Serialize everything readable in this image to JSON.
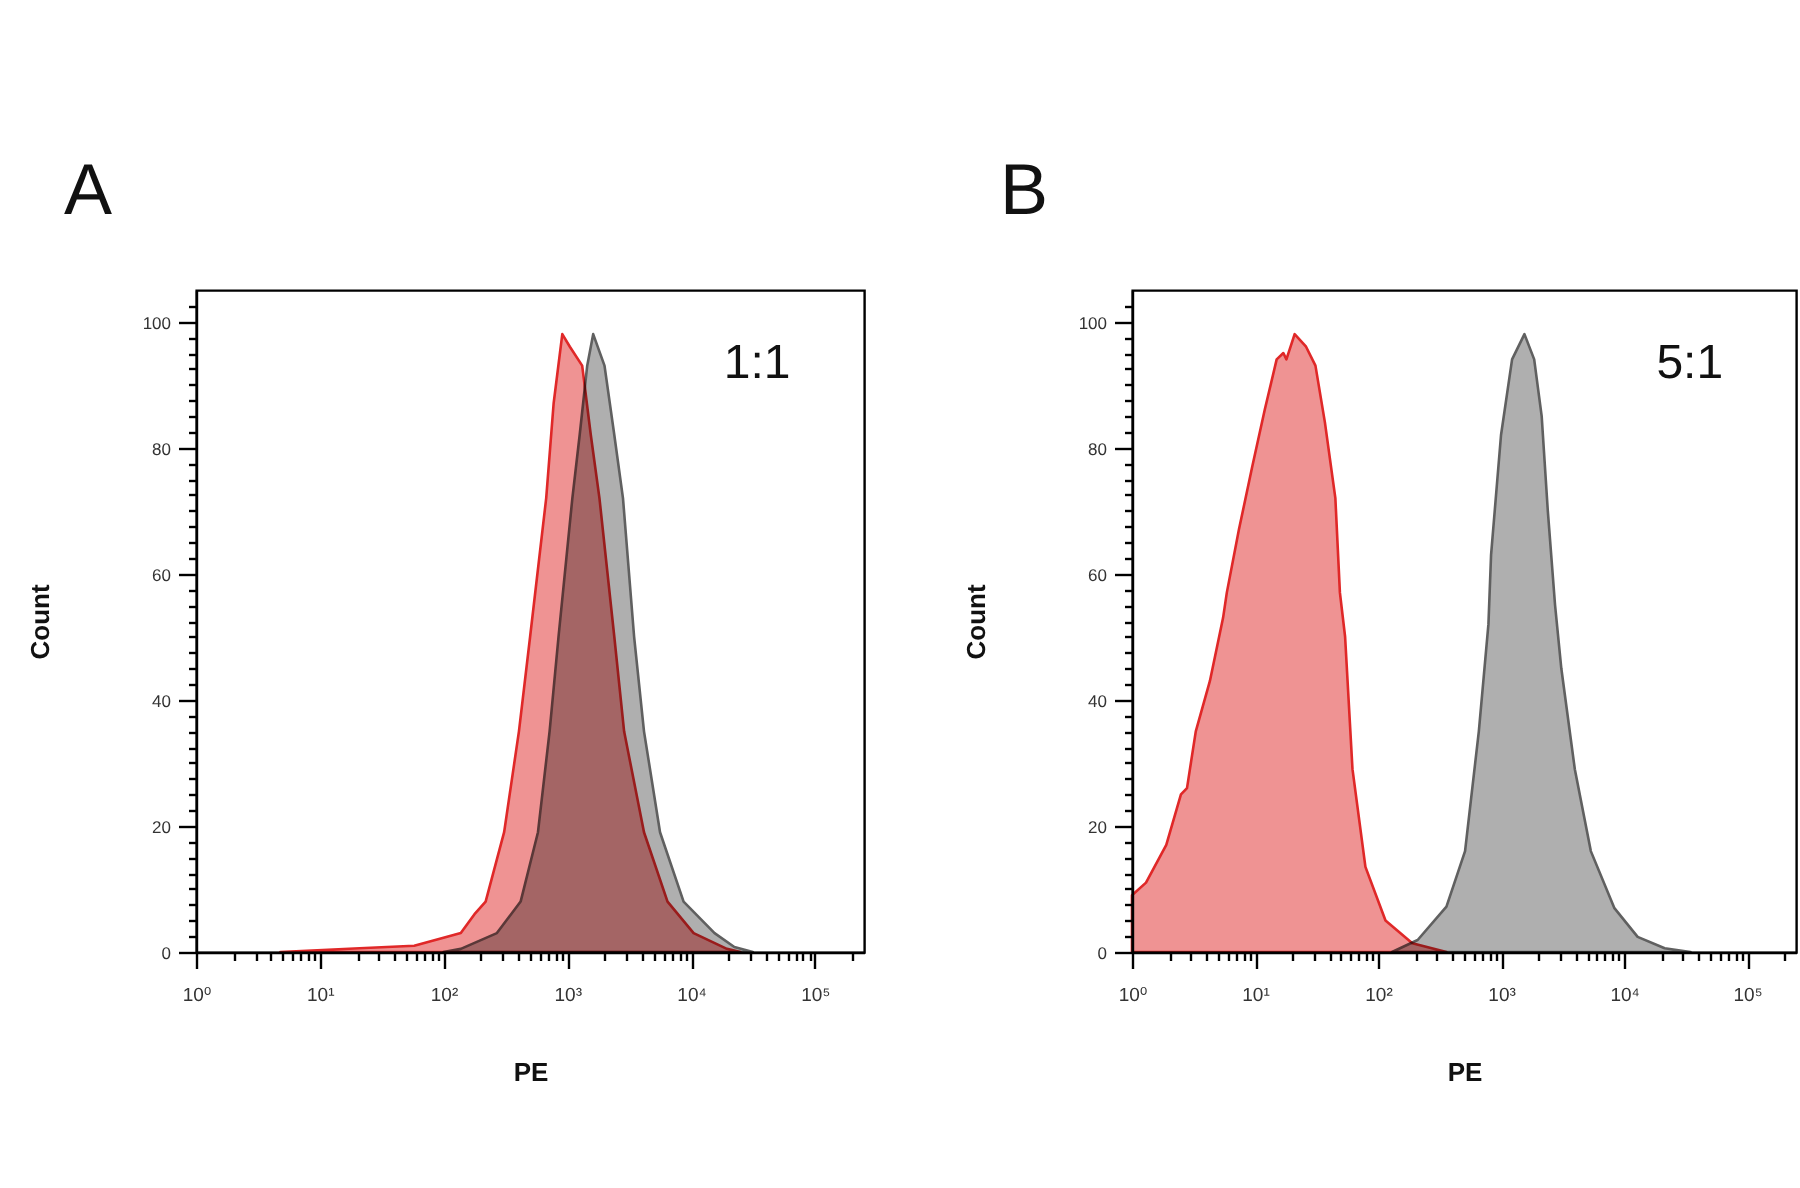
{
  "chart_data": [
    {
      "type": "area",
      "title": "A",
      "xlabel": "PE",
      "ylabel": "Count",
      "annotations": [
        "1:1"
      ],
      "log": "x",
      "xlim": [
        1,
        250000
      ],
      "ylim": [
        0,
        105
      ],
      "xticks": [
        {
          "value": 1,
          "label": "10⁰"
        },
        {
          "value": 2,
          "label": null
        },
        {
          "value": 3,
          "label": null
        },
        {
          "value": 4,
          "label": null
        },
        {
          "value": 5,
          "label": null
        },
        {
          "value": 6,
          "label": null
        },
        {
          "value": 7,
          "label": null
        },
        {
          "value": 8,
          "label": null
        },
        {
          "value": 9,
          "label": null
        },
        {
          "value": 10,
          "label": "10¹"
        },
        {
          "value": 20,
          "label": null
        },
        {
          "value": 30,
          "label": null
        },
        {
          "value": 40,
          "label": null
        },
        {
          "value": 50,
          "label": null
        },
        {
          "value": 60,
          "label": null
        },
        {
          "value": 70,
          "label": null
        },
        {
          "value": 80,
          "label": null
        },
        {
          "value": 90,
          "label": null
        },
        {
          "value": 100,
          "label": "10²"
        },
        {
          "value": 200,
          "label": null
        },
        {
          "value": 300,
          "label": null
        },
        {
          "value": 400,
          "label": null
        },
        {
          "value": 500,
          "label": null
        },
        {
          "value": 600,
          "label": null
        },
        {
          "value": 700,
          "label": null
        },
        {
          "value": 800,
          "label": null
        },
        {
          "value": 900,
          "label": null
        },
        {
          "value": 1000,
          "label": "10³"
        },
        {
          "value": 2000,
          "label": null
        },
        {
          "value": 3000,
          "label": null
        },
        {
          "value": 4000,
          "label": null
        },
        {
          "value": 5000,
          "label": null
        },
        {
          "value": 6000,
          "label": null
        },
        {
          "value": 7000,
          "label": null
        },
        {
          "value": 8000,
          "label": null
        },
        {
          "value": 9000,
          "label": null
        },
        {
          "value": 10000,
          "label": "10⁴"
        },
        {
          "value": 20000,
          "label": null
        },
        {
          "value": 30000,
          "label": null
        },
        {
          "value": 40000,
          "label": null
        },
        {
          "value": 50000,
          "label": null
        },
        {
          "value": 60000,
          "label": null
        },
        {
          "value": 70000,
          "label": null
        },
        {
          "value": 80000,
          "label": null
        },
        {
          "value": 90000,
          "label": null
        },
        {
          "value": 100000,
          "label": "10⁵"
        },
        {
          "value": 200000,
          "label": null
        }
      ],
      "yticks": [
        0,
        {
          "value": 2.5,
          "label": null
        },
        {
          "value": 5,
          "label": null
        },
        {
          "value": 7.5,
          "label": null
        },
        {
          "value": 10,
          "label": null
        },
        {
          "value": 12.5,
          "label": null
        },
        {
          "value": 15,
          "label": null
        },
        {
          "value": 17.5,
          "label": null
        },
        20,
        {
          "value": 22.5,
          "label": null
        },
        {
          "value": 25,
          "label": null
        },
        {
          "value": 27.5,
          "label": null
        },
        {
          "value": 30,
          "label": null
        },
        {
          "value": 32.5,
          "label": null
        },
        {
          "value": 35,
          "label": null
        },
        {
          "value": 37.5,
          "label": null
        },
        40,
        {
          "value": 42.5,
          "label": null
        },
        {
          "value": 45,
          "label": null
        },
        {
          "value": 47.5,
          "label": null
        },
        {
          "value": 50,
          "label": null
        },
        {
          "value": 52.5,
          "label": null
        },
        {
          "value": 55,
          "label": null
        },
        {
          "value": 57.5,
          "label": null
        },
        60,
        {
          "value": 62.5,
          "label": null
        },
        {
          "value": 65,
          "label": null
        },
        {
          "value": 67.5,
          "label": null
        },
        {
          "value": 70,
          "label": null
        },
        {
          "value": 72.5,
          "label": null
        },
        {
          "value": 75,
          "label": null
        },
        {
          "value": 77.5,
          "label": null
        },
        80,
        {
          "value": 82.5,
          "label": null
        },
        {
          "value": 85,
          "label": null
        },
        {
          "value": 87.5,
          "label": null
        },
        {
          "value": 90,
          "label": null
        },
        {
          "value": 92.5,
          "label": null
        },
        {
          "value": 95,
          "label": null
        },
        {
          "value": 97.5,
          "label": null
        },
        100,
        {
          "value": 102.5,
          "label": null
        }
      ],
      "series": [
        {
          "color": "#606060",
          "x": [
            100,
            138,
            270,
            420,
            580,
            720,
            850,
            1100,
            1260,
            1450,
            1620,
            2000,
            2400,
            2820,
            3470,
            4170,
            5620,
            8710,
            15500,
            22400,
            31600
          ],
          "values": [
            0,
            0.5,
            3,
            8,
            19,
            35,
            50,
            72,
            82,
            93,
            98,
            93,
            82,
            72,
            50,
            35,
            19,
            8,
            3,
            0.8,
            0
          ]
        },
        {
          "color": "#e02828",
          "x": [
            4.8,
            21,
            58,
            107,
            138,
            178,
            219,
            309,
            407,
            501,
            676,
            776,
            912,
            1050,
            1320,
            1550,
            1820,
            2400,
            2880,
            4170,
            6460,
            10500,
            19500,
            25100
          ],
          "values": [
            0,
            0.6,
            1,
            2.4,
            3,
            6,
            8,
            19,
            35,
            50,
            72,
            87,
            98,
            96,
            93,
            82,
            72,
            50,
            35,
            19,
            8,
            3,
            0.5,
            0
          ]
        }
      ]
    },
    {
      "type": "area",
      "title": "B",
      "xlabel": "PE",
      "ylabel": "Count",
      "annotations": [
        "5:1"
      ],
      "log": "x",
      "xlim": [
        1,
        250000
      ],
      "ylim": [
        0,
        105
      ],
      "xticks": [
        {
          "value": 1,
          "label": "10⁰"
        },
        {
          "value": 2,
          "label": null
        },
        {
          "value": 3,
          "label": null
        },
        {
          "value": 4,
          "label": null
        },
        {
          "value": 5,
          "label": null
        },
        {
          "value": 6,
          "label": null
        },
        {
          "value": 7,
          "label": null
        },
        {
          "value": 8,
          "label": null
        },
        {
          "value": 9,
          "label": null
        },
        {
          "value": 10,
          "label": "10¹"
        },
        {
          "value": 20,
          "label": null
        },
        {
          "value": 30,
          "label": null
        },
        {
          "value": 40,
          "label": null
        },
        {
          "value": 50,
          "label": null
        },
        {
          "value": 60,
          "label": null
        },
        {
          "value": 70,
          "label": null
        },
        {
          "value": 80,
          "label": null
        },
        {
          "value": 90,
          "label": null
        },
        {
          "value": 100,
          "label": "10²"
        },
        {
          "value": 200,
          "label": null
        },
        {
          "value": 300,
          "label": null
        },
        {
          "value": 400,
          "label": null
        },
        {
          "value": 500,
          "label": null
        },
        {
          "value": 600,
          "label": null
        },
        {
          "value": 700,
          "label": null
        },
        {
          "value": 800,
          "label": null
        },
        {
          "value": 900,
          "label": null
        },
        {
          "value": 1000,
          "label": "10³"
        },
        {
          "value": 2000,
          "label": null
        },
        {
          "value": 3000,
          "label": null
        },
        {
          "value": 4000,
          "label": null
        },
        {
          "value": 5000,
          "label": null
        },
        {
          "value": 6000,
          "label": null
        },
        {
          "value": 7000,
          "label": null
        },
        {
          "value": 8000,
          "label": null
        },
        {
          "value": 9000,
          "label": null
        },
        {
          "value": 10000,
          "label": "10⁴"
        },
        {
          "value": 20000,
          "label": null
        },
        {
          "value": 30000,
          "label": null
        },
        {
          "value": 40000,
          "label": null
        },
        {
          "value": 50000,
          "label": null
        },
        {
          "value": 60000,
          "label": null
        },
        {
          "value": 70000,
          "label": null
        },
        {
          "value": 80000,
          "label": null
        },
        {
          "value": 90000,
          "label": null
        },
        {
          "value": 100000,
          "label": "10⁵"
        },
        {
          "value": 200000,
          "label": null
        }
      ],
      "yticks": [
        0,
        {
          "value": 2.5,
          "label": null
        },
        {
          "value": 5,
          "label": null
        },
        {
          "value": 7.5,
          "label": null
        },
        {
          "value": 10,
          "label": null
        },
        {
          "value": 12.5,
          "label": null
        },
        {
          "value": 15,
          "label": null
        },
        {
          "value": 17.5,
          "label": null
        },
        20,
        {
          "value": 22.5,
          "label": null
        },
        {
          "value": 25,
          "label": null
        },
        {
          "value": 27.5,
          "label": null
        },
        {
          "value": 30,
          "label": null
        },
        {
          "value": 32.5,
          "label": null
        },
        {
          "value": 35,
          "label": null
        },
        {
          "value": 37.5,
          "label": null
        },
        40,
        {
          "value": 42.5,
          "label": null
        },
        {
          "value": 45,
          "label": null
        },
        {
          "value": 47.5,
          "label": null
        },
        {
          "value": 50,
          "label": null
        },
        {
          "value": 52.5,
          "label": null
        },
        {
          "value": 55,
          "label": null
        },
        {
          "value": 57.5,
          "label": null
        },
        60,
        {
          "value": 62.5,
          "label": null
        },
        {
          "value": 65,
          "label": null
        },
        {
          "value": 67.5,
          "label": null
        },
        {
          "value": 70,
          "label": null
        },
        {
          "value": 72.5,
          "label": null
        },
        {
          "value": 75,
          "label": null
        },
        {
          "value": 77.5,
          "label": null
        },
        80,
        {
          "value": 82.5,
          "label": null
        },
        {
          "value": 85,
          "label": null
        },
        {
          "value": 87.5,
          "label": null
        },
        {
          "value": 90,
          "label": null
        },
        {
          "value": 92.5,
          "label": null
        },
        {
          "value": 95,
          "label": null
        },
        {
          "value": 97.5,
          "label": null
        },
        100,
        {
          "value": 102.5,
          "label": null
        }
      ],
      "series": [
        {
          "color": "#e02828",
          "x": [
            1,
            1.3,
            1.9,
            2.5,
            2.8,
            3.3,
            4.3,
            5.5,
            5.9,
            7.4,
            9.5,
            12,
            15,
            17,
            18,
            21,
            26,
            31,
            37,
            45,
            49,
            54,
            62,
            79,
            115,
            190,
            360
          ],
          "values": [
            9,
            11,
            17,
            25,
            26,
            35,
            43,
            53,
            57,
            67,
            77,
            86,
            94,
            95,
            94,
            98,
            96,
            93,
            84,
            72,
            57,
            50,
            29,
            13.5,
            5,
            1.4,
            0
          ]
        },
        {
          "color": "#606060",
          "x": [
            130,
            210,
            360,
            510,
            660,
            790,
            830,
            1000,
            1230,
            1550,
            1860,
            2140,
            2400,
            2750,
            3090,
            3980,
            5370,
            8320,
            12900,
            21400,
            34700
          ],
          "values": [
            0,
            1.9,
            7.2,
            16,
            35,
            52,
            63,
            82,
            94,
            98,
            94,
            85,
            70,
            55,
            45,
            29,
            16,
            7,
            2.4,
            0.6,
            0
          ]
        }
      ]
    }
  ]
}
